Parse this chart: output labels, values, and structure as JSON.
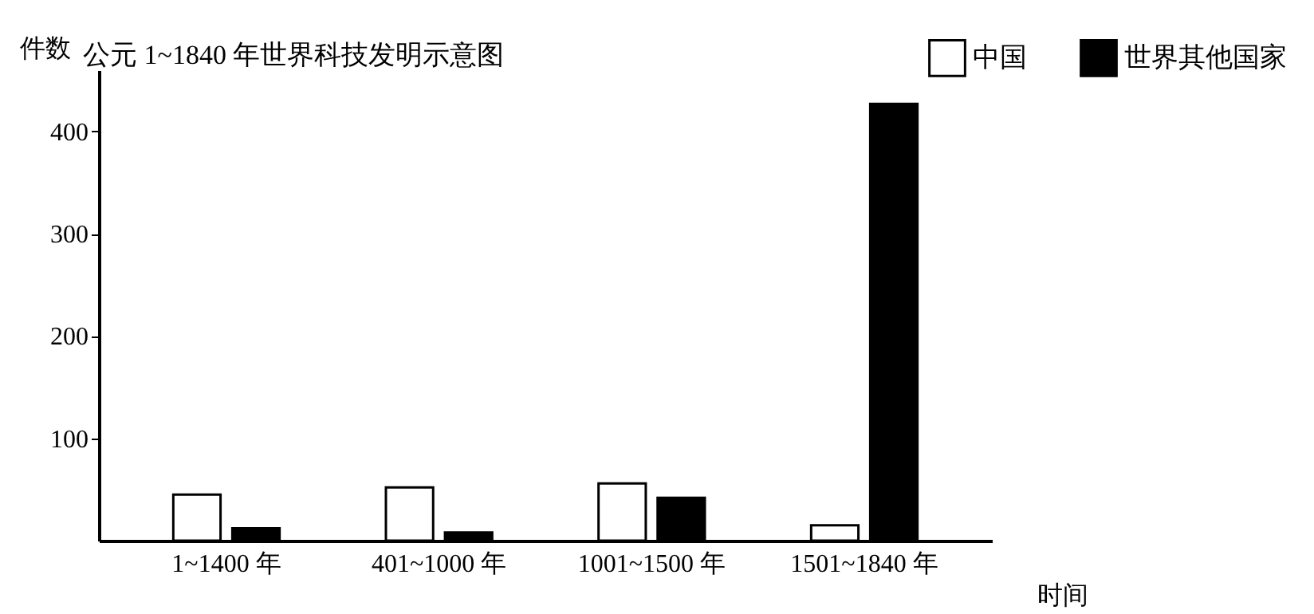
{
  "chart_data": {
    "type": "bar",
    "title": "公元 1~1840 年世界科技发明示意图",
    "xlabel": "时间",
    "ylabel": "件数",
    "categories": [
      "1~1400 年",
      "401~1000 年",
      "1001~1500 年",
      "1501~1840 年"
    ],
    "series": [
      {
        "name": "中国",
        "color": "#ffffff",
        "values": [
          45,
          52,
          56,
          15
        ]
      },
      {
        "name": "世界其他国家",
        "color": "#000000",
        "values": [
          12,
          8,
          42,
          427
        ]
      }
    ],
    "ylim": [
      0,
      460
    ],
    "yticks": [
      100,
      200,
      300,
      400
    ],
    "legend": "top right"
  }
}
